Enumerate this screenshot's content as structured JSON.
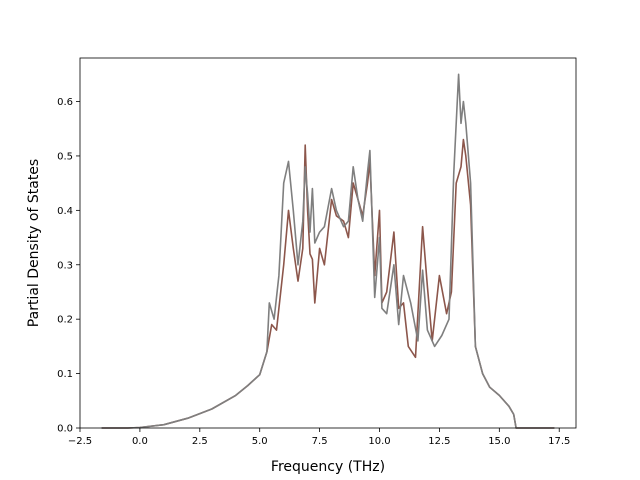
{
  "chart_data": {
    "type": "line",
    "title": "",
    "xlabel": "Frequency (THz)",
    "ylabel": "Partial Density of States",
    "xlim": [
      -2.5,
      18.2
    ],
    "ylim": [
      0.0,
      0.68
    ],
    "xticks": [
      -2.5,
      0.0,
      2.5,
      5.0,
      7.5,
      10.0,
      12.5,
      15.0,
      17.5
    ],
    "xtick_labels": [
      "−2.5",
      "0.0",
      "2.5",
      "5.0",
      "7.5",
      "10.0",
      "12.5",
      "15.0",
      "17.5"
    ],
    "yticks": [
      0.0,
      0.1,
      0.2,
      0.3,
      0.4,
      0.5,
      0.6
    ],
    "ytick_labels": [
      "0.0",
      "0.1",
      "0.2",
      "0.3",
      "0.4",
      "0.5",
      "0.6"
    ],
    "grid": false,
    "legend": "none",
    "series": [
      {
        "color": "#8c564b",
        "x": [
          -1.6,
          -0.5,
          0.0,
          1.0,
          2.0,
          3.0,
          4.0,
          4.5,
          5.0,
          5.3,
          5.5,
          5.7,
          6.0,
          6.2,
          6.4,
          6.6,
          6.8,
          6.9,
          7.0,
          7.1,
          7.2,
          7.3,
          7.5,
          7.7,
          8.0,
          8.2,
          8.5,
          8.7,
          8.9,
          9.1,
          9.3,
          9.5,
          9.6,
          9.8,
          10.0,
          10.1,
          10.3,
          10.6,
          10.8,
          11.0,
          11.2,
          11.5,
          11.8,
          12.0,
          12.2,
          12.5,
          12.8,
          13.0,
          13.2,
          13.4,
          13.5,
          13.6,
          13.8,
          14.0,
          14.3,
          14.6,
          15.0,
          15.4,
          15.6,
          15.7,
          16.5,
          17.3
        ],
        "y": [
          0.0,
          0.0,
          0.001,
          0.006,
          0.018,
          0.035,
          0.06,
          0.078,
          0.098,
          0.14,
          0.19,
          0.18,
          0.3,
          0.4,
          0.33,
          0.27,
          0.33,
          0.52,
          0.4,
          0.32,
          0.31,
          0.23,
          0.33,
          0.3,
          0.42,
          0.39,
          0.38,
          0.35,
          0.45,
          0.42,
          0.39,
          0.45,
          0.49,
          0.28,
          0.4,
          0.23,
          0.25,
          0.36,
          0.22,
          0.23,
          0.15,
          0.13,
          0.37,
          0.26,
          0.16,
          0.28,
          0.21,
          0.25,
          0.45,
          0.48,
          0.53,
          0.5,
          0.41,
          0.15,
          0.1,
          0.075,
          0.06,
          0.04,
          0.025,
          0.0,
          0.0,
          0.0
        ]
      },
      {
        "color": "#7f7f7f",
        "x": [
          -1.6,
          -0.5,
          0.0,
          1.0,
          2.0,
          3.0,
          4.0,
          4.5,
          5.0,
          5.3,
          5.4,
          5.6,
          5.8,
          6.0,
          6.2,
          6.4,
          6.6,
          6.8,
          6.9,
          7.0,
          7.1,
          7.2,
          7.3,
          7.5,
          7.7,
          8.0,
          8.2,
          8.5,
          8.7,
          8.9,
          9.1,
          9.3,
          9.5,
          9.6,
          9.8,
          10.0,
          10.1,
          10.3,
          10.6,
          10.8,
          11.0,
          11.3,
          11.6,
          11.8,
          12.0,
          12.3,
          12.6,
          12.9,
          13.1,
          13.3,
          13.4,
          13.5,
          13.6,
          13.8,
          14.0,
          14.3,
          14.6,
          15.0,
          15.4,
          15.6,
          15.7,
          16.5,
          17.3
        ],
        "y": [
          0.0,
          0.0,
          0.001,
          0.006,
          0.018,
          0.035,
          0.06,
          0.078,
          0.098,
          0.14,
          0.23,
          0.2,
          0.28,
          0.45,
          0.49,
          0.4,
          0.3,
          0.38,
          0.48,
          0.43,
          0.36,
          0.44,
          0.34,
          0.36,
          0.37,
          0.44,
          0.4,
          0.37,
          0.38,
          0.48,
          0.42,
          0.38,
          0.47,
          0.51,
          0.24,
          0.35,
          0.22,
          0.21,
          0.3,
          0.19,
          0.28,
          0.23,
          0.16,
          0.29,
          0.18,
          0.15,
          0.17,
          0.2,
          0.47,
          0.65,
          0.56,
          0.6,
          0.56,
          0.45,
          0.15,
          0.1,
          0.075,
          0.06,
          0.04,
          0.025,
          0.0,
          0.0,
          0.0
        ]
      }
    ]
  }
}
